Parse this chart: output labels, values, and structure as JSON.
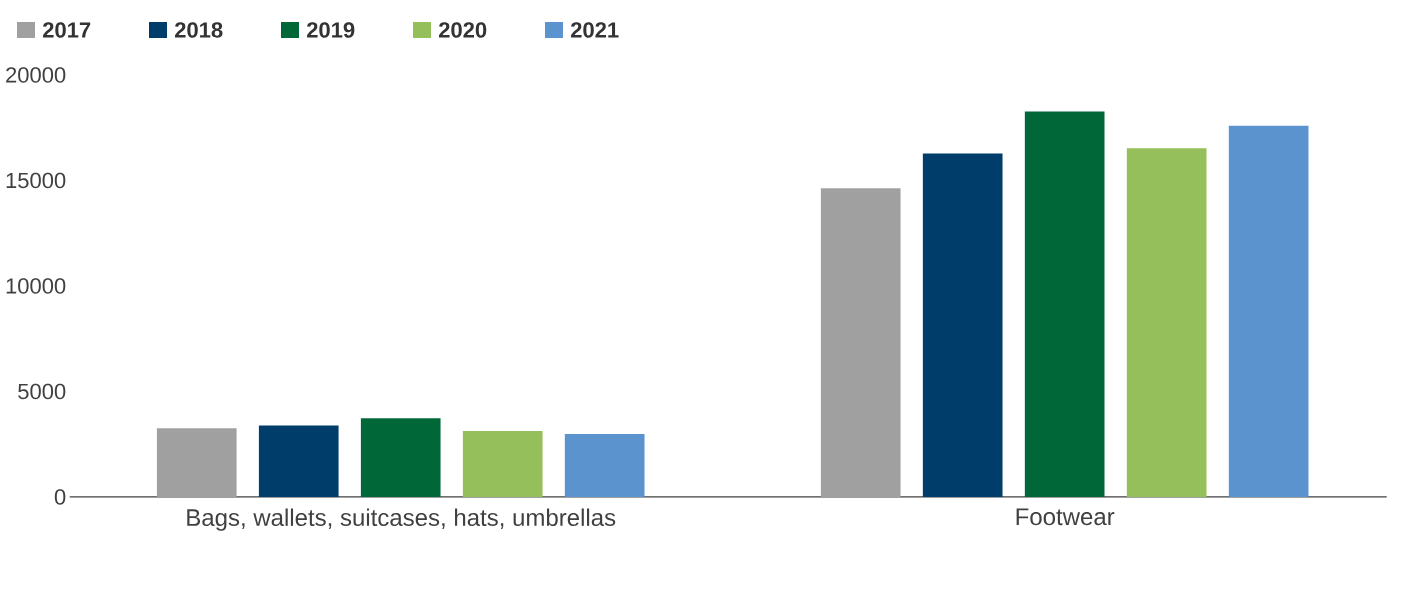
{
  "chart_data": {
    "type": "bar",
    "categories": [
      "Bags, wallets, suitcases, hats, umbrellas",
      "Footwear"
    ],
    "series": [
      {
        "name": "2017",
        "color": "#a0a0a0",
        "values": [
          3250,
          14630
        ]
      },
      {
        "name": "2018",
        "color": "#003d6b",
        "values": [
          3380,
          16280
        ]
      },
      {
        "name": "2019",
        "color": "#006838",
        "values": [
          3730,
          18270
        ]
      },
      {
        "name": "2020",
        "color": "#95bf5a",
        "values": [
          3120,
          16520
        ]
      },
      {
        "name": "2021",
        "color": "#5b93cf",
        "values": [
          2980,
          17590
        ]
      }
    ],
    "ylim": [
      0,
      20000
    ],
    "yticks": [
      0,
      5000,
      10000,
      15000,
      20000
    ],
    "legend": "top left"
  }
}
